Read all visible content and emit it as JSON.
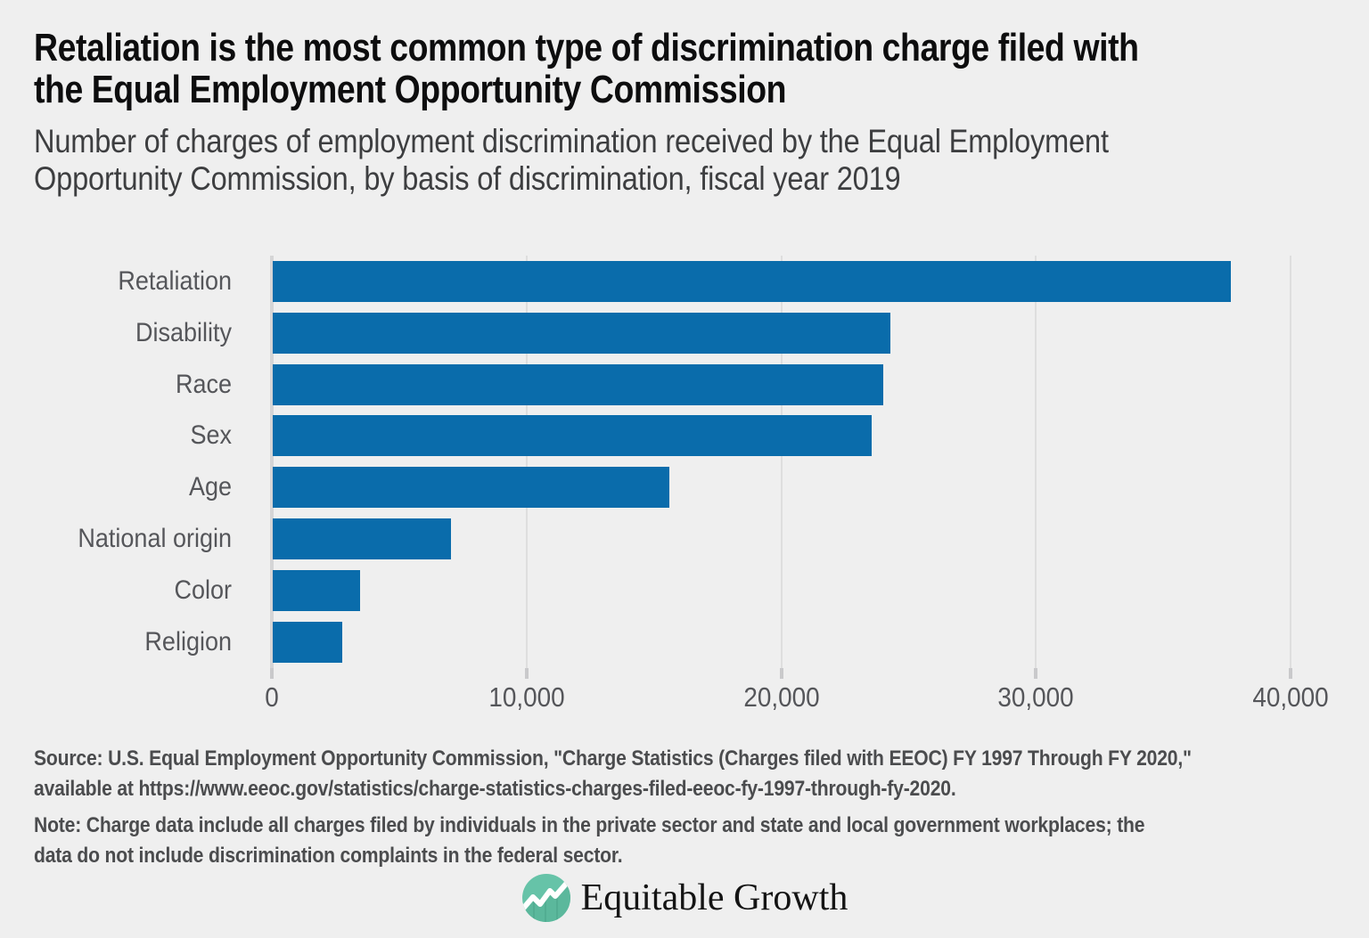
{
  "header": {
    "title_line1": "Retaliation is the most common type of discrimination charge filed with",
    "title_line2": "the Equal Employment Opportunity Commission",
    "subtitle_line1": "Number of charges of employment discrimination received by the Equal Employment",
    "subtitle_line2": "Opportunity Commission, by basis of discrimination, fiscal year 2019"
  },
  "chart_data": {
    "type": "bar",
    "orientation": "horizontal",
    "title": "Retaliation is the most common type of discrimination charge filed with the Equal Employment Opportunity Commission",
    "subtitle": "Number of charges of employment discrimination received by the Equal Employment Opportunity Commission, by basis of discrimination, fiscal year 2019",
    "categories": [
      "Retaliation",
      "Disability",
      "Race",
      "Sex",
      "Age",
      "National origin",
      "Color",
      "Religion"
    ],
    "values": [
      37632,
      24238,
      23976,
      23532,
      15573,
      7009,
      3415,
      2725
    ],
    "xlabel": "",
    "ylabel": "",
    "xlim": [
      0,
      40000
    ],
    "x_tick_labels": [
      "0",
      "10,000",
      "20,000",
      "30,000",
      "40,000"
    ],
    "x_tick_values": [
      0,
      10000,
      20000,
      30000,
      40000
    ],
    "grid": "vertical-gridlines-on",
    "legend": "none",
    "bar_color": "#0a6cab",
    "background_color": "#efefef"
  },
  "source": {
    "line1": "Source: U.S. Equal Employment Opportunity Commission, \"Charge Statistics (Charges filed with EEOC) FY 1997 Through FY 2020,\"",
    "line2": "available at https://www.eeoc.gov/statistics/charge-statistics-charges-filed-eeoc-fy-1997-through-fy-2020."
  },
  "note": {
    "line1": "Note: Charge data include all charges filed by individuals in the private sector and state and local government workplaces; the",
    "line2": "data do not include discrimination complaints in the federal sector."
  },
  "logo": {
    "text": "Equitable Growth",
    "icon": "line-chart-in-teal-circle",
    "icon_color": "#66c3a8",
    "icon_color_dark": "#56b399"
  }
}
